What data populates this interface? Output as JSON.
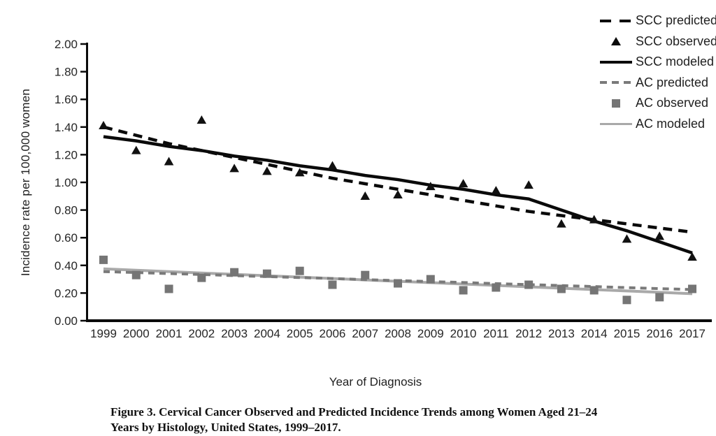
{
  "axes": {
    "y_label": "Incidence rate per 100,000 women",
    "x_label": "Year of Diagnosis",
    "y_tick_labels": [
      "0.00",
      "0.20",
      "0.40",
      "0.60",
      "0.80",
      "1.00",
      "1.20",
      "1.40",
      "1.60",
      "1.80",
      "2.00"
    ],
    "x_tick_labels": [
      "1999",
      "2000",
      "2001",
      "2002",
      "2003",
      "2004",
      "2005",
      "2006",
      "2007",
      "2008",
      "2009",
      "2010",
      "2011",
      "2012",
      "2013",
      "2014",
      "2015",
      "2016",
      "2017"
    ]
  },
  "legend": {
    "items": [
      {
        "label": "SCC predicted",
        "marker": "dash-bold",
        "color": "#0a0a0a"
      },
      {
        "label": "SCC observed",
        "marker": "triangle",
        "color": "#0a0a0a"
      },
      {
        "label": "SCC modeled",
        "marker": "line-bold",
        "color": "#0a0a0a"
      },
      {
        "label": "AC predicted",
        "marker": "dash",
        "color": "#7a7a7a"
      },
      {
        "label": "AC observed",
        "marker": "square",
        "color": "#757575"
      },
      {
        "label": "AC modeled",
        "marker": "line",
        "color": "#a9a9a9"
      }
    ]
  },
  "caption": {
    "line1": "Figure 3. Cervical Cancer Observed and Predicted Incidence Trends among Women Aged 21–24",
    "line2": "Years by Histology, United States, 1999–2017."
  },
  "chart_data": {
    "type": "line",
    "title": "Figure 3. Cervical Cancer Observed and Predicted Incidence Trends among Women Aged 21–24 Years by Histology, United States, 1999–2017.",
    "xlabel": "Year of Diagnosis",
    "ylabel": "Incidence rate per 100,000 women",
    "ylim": [
      0.0,
      2.0
    ],
    "y_tick_step": 0.2,
    "grid": false,
    "legend_position": "top-right",
    "x": [
      1999,
      2000,
      2001,
      2002,
      2003,
      2004,
      2005,
      2006,
      2007,
      2008,
      2009,
      2010,
      2011,
      2012,
      2013,
      2014,
      2015,
      2016,
      2017
    ],
    "series": [
      {
        "name": "SCC predicted",
        "type": "line",
        "style": "dashed",
        "color": "#0a0a0a",
        "width": 4.5,
        "dash": "13 9",
        "values": [
          1.4,
          1.34,
          1.28,
          1.23,
          1.18,
          1.13,
          1.08,
          1.03,
          0.99,
          0.95,
          0.91,
          0.87,
          0.83,
          0.79,
          0.76,
          0.73,
          0.7,
          0.67,
          0.64
        ]
      },
      {
        "name": "SCC observed",
        "type": "scatter",
        "marker": "triangle",
        "color": "#111111",
        "values": [
          1.41,
          1.23,
          1.15,
          1.45,
          1.1,
          1.08,
          1.07,
          1.12,
          0.9,
          0.91,
          0.97,
          0.99,
          0.94,
          0.98,
          0.7,
          0.73,
          0.59,
          0.61,
          0.46
        ]
      },
      {
        "name": "SCC modeled",
        "type": "line",
        "style": "solid",
        "color": "#0a0a0a",
        "width": 4.5,
        "values": [
          1.33,
          1.3,
          1.26,
          1.23,
          1.19,
          1.16,
          1.12,
          1.09,
          1.05,
          1.02,
          0.98,
          0.95,
          0.91,
          0.88,
          0.8,
          0.72,
          0.65,
          0.57,
          0.49
        ]
      },
      {
        "name": "AC predicted",
        "type": "line",
        "style": "dashed",
        "color": "#7a7a7a",
        "width": 4,
        "dash": "9 7",
        "values": [
          0.355,
          0.348,
          0.341,
          0.334,
          0.326,
          0.319,
          0.312,
          0.305,
          0.297,
          0.29,
          0.283,
          0.276,
          0.268,
          0.261,
          0.254,
          0.247,
          0.239,
          0.232,
          0.225
        ]
      },
      {
        "name": "AC observed",
        "type": "scatter",
        "marker": "square",
        "color": "#757575",
        "values": [
          0.44,
          0.33,
          0.23,
          0.31,
          0.35,
          0.34,
          0.36,
          0.26,
          0.33,
          0.27,
          0.3,
          0.22,
          0.24,
          0.26,
          0.23,
          0.22,
          0.15,
          0.17,
          0.23
        ]
      },
      {
        "name": "AC modeled",
        "type": "line",
        "style": "solid",
        "color": "#a9a9a9",
        "width": 4,
        "values": [
          0.375,
          0.365,
          0.355,
          0.345,
          0.335,
          0.325,
          0.315,
          0.305,
          0.295,
          0.285,
          0.275,
          0.265,
          0.255,
          0.245,
          0.235,
          0.225,
          0.215,
          0.205,
          0.195
        ]
      }
    ]
  }
}
